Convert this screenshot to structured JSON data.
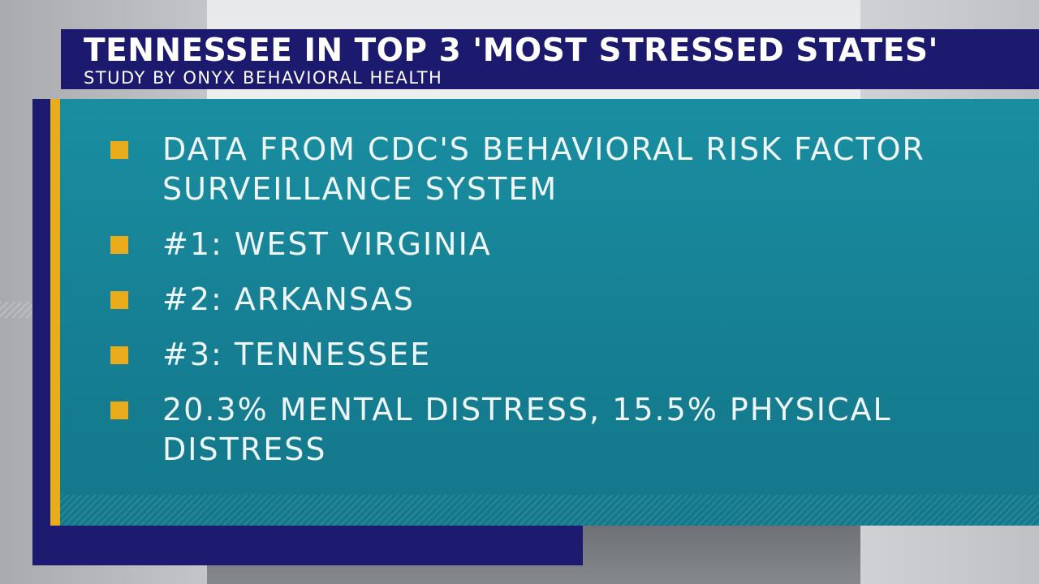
{
  "header": {
    "title": "TENNESSEE IN TOP 3 'MOST STRESSED STATES'",
    "subtitle": "STUDY BY ONYX BEHAVIORAL HEALTH"
  },
  "bullets": [
    {
      "text": "DATA FROM CDC'S BEHAVIORAL RISK FACTOR\nSURVEILLANCE SYSTEM"
    },
    {
      "text": "#1: WEST VIRGINIA"
    },
    {
      "text": "#2: ARKANSAS"
    },
    {
      "text": "#3: TENNESSEE"
    },
    {
      "text": "20.3% MENTAL DISTRESS, 15.5% PHYSICAL\nDISTRESS"
    }
  ],
  "colors": {
    "header_bg": "#1c1a6e",
    "panel_teal": "#1a8ea1",
    "accent_yellow": "#e8ac1c",
    "text": "#eef6f8"
  }
}
